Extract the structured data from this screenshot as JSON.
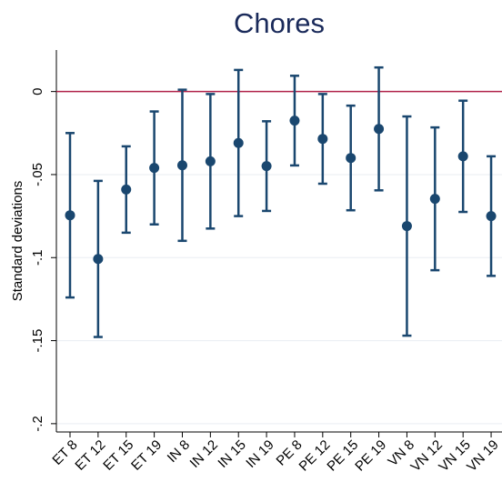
{
  "chart_data": {
    "type": "errorbar",
    "title": "Chores",
    "y_label": "Standard deviations",
    "categories": [
      "ET 8",
      "ET 12",
      "ET 15",
      "ET 19",
      "IN 8",
      "IN 12",
      "IN 15",
      "IN 19",
      "PE 8",
      "PE 12",
      "PE 15",
      "PE 19",
      "VN 8",
      "VN 12",
      "VN 15",
      "VN 19"
    ],
    "values": [
      -0.0745,
      -0.1008,
      -0.059,
      -0.046,
      -0.0444,
      -0.042,
      -0.031,
      -0.0449,
      -0.0175,
      -0.0285,
      -0.04,
      -0.0225,
      -0.081,
      -0.0646,
      -0.039,
      -0.075
    ],
    "errors": [
      0.0495,
      0.047,
      0.026,
      0.034,
      0.0455,
      0.0405,
      0.044,
      0.027,
      0.027,
      0.027,
      0.0315,
      0.037,
      0.066,
      0.043,
      0.0335,
      0.036
    ],
    "color": "#1a476f",
    "reference_line": 0,
    "reference_color": "#b0234a",
    "ylim": [
      -0.205,
      0.025
    ],
    "yticks": [
      {
        "value": -0.2,
        "label": "-.2"
      },
      {
        "value": -0.15,
        "label": "-.15"
      },
      {
        "value": -0.1,
        "label": "-.1"
      },
      {
        "value": -0.05,
        "label": "-.05"
      },
      0
    ],
    "grid": true
  }
}
